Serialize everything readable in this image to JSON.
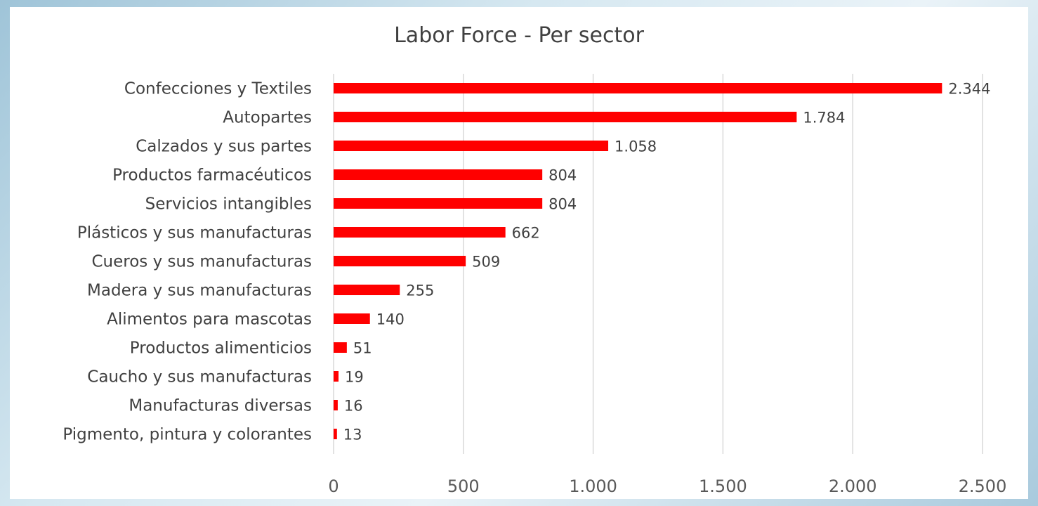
{
  "chart_data": {
    "type": "bar",
    "orientation": "horizontal",
    "title": "Labor Force - Per sector",
    "categories": [
      "Confecciones y Textiles",
      "Autopartes",
      "Calzados y sus partes",
      "Productos farmacéuticos",
      "Servicios intangibles",
      "Plásticos y sus manufacturas",
      "Cueros y sus manufacturas",
      "Madera y sus manufacturas",
      "Alimentos para mascotas",
      "Productos alimenticios",
      "Caucho y sus manufacturas",
      "Manufacturas diversas",
      "Pigmento, pintura y colorantes"
    ],
    "values": [
      2344,
      1784,
      1058,
      804,
      804,
      662,
      509,
      255,
      140,
      51,
      19,
      16,
      13
    ],
    "data_labels": [
      "2.344",
      "1.784",
      "1.058",
      "804",
      "804",
      "662",
      "509",
      "255",
      "140",
      "51",
      "19",
      "16",
      "13"
    ],
    "xlim": [
      0,
      2500
    ],
    "ticks": [
      0,
      500,
      1000,
      1500,
      2000,
      2500
    ],
    "tick_labels": [
      "0",
      "500",
      "1.000",
      "1.500",
      "2.000",
      "2.500"
    ],
    "grid": true,
    "bar_color": "#ff0000"
  }
}
